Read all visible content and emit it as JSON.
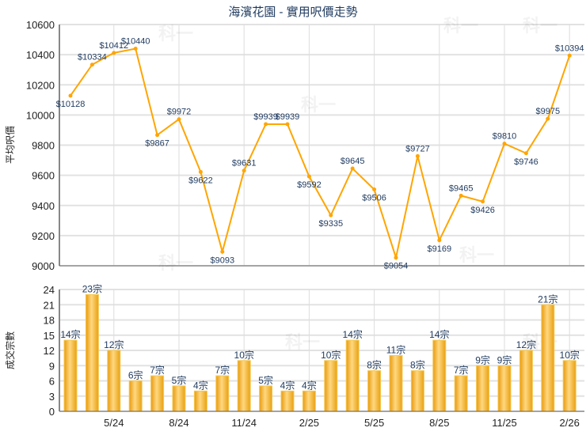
{
  "chart_data": [
    {
      "type": "line",
      "title": "海濱花園 - 實用呎價走勢",
      "ylabel": "平均呎價",
      "ylim": [
        9000,
        10600
      ],
      "yticks": [
        9000,
        9200,
        9400,
        9600,
        9800,
        10000,
        10200,
        10400,
        10600
      ],
      "grid": true,
      "color": "#FFA500",
      "label_prefix": "$",
      "values": [
        10128,
        10334,
        10412,
        10440,
        9867,
        9972,
        9622,
        9093,
        9631,
        9939,
        9939,
        9592,
        9335,
        9645,
        9506,
        9054,
        9727,
        9169,
        9465,
        9426,
        9810,
        9746,
        9975,
        10394
      ]
    },
    {
      "type": "bar",
      "ylabel": "成交宗數",
      "ylim": [
        0,
        24
      ],
      "yticks": [
        0,
        3,
        6,
        9,
        12,
        15,
        18,
        21,
        24
      ],
      "grid": true,
      "color": "#F0A818",
      "label_suffix": "宗",
      "values": [
        14,
        23,
        12,
        6,
        7,
        5,
        4,
        7,
        10,
        5,
        4,
        4,
        10,
        14,
        8,
        11,
        8,
        14,
        7,
        9,
        9,
        12,
        21,
        10
      ],
      "xtick_labels": [
        {
          "index": 2,
          "label": "5/24"
        },
        {
          "index": 5,
          "label": "8/24"
        },
        {
          "index": 8,
          "label": "11/24"
        },
        {
          "index": 11,
          "label": "2/25"
        },
        {
          "index": 14,
          "label": "5/25"
        },
        {
          "index": 17,
          "label": "8/25"
        },
        {
          "index": 20,
          "label": "11/25"
        },
        {
          "index": 23,
          "label": "2/26"
        }
      ]
    }
  ],
  "watermark": "科一"
}
